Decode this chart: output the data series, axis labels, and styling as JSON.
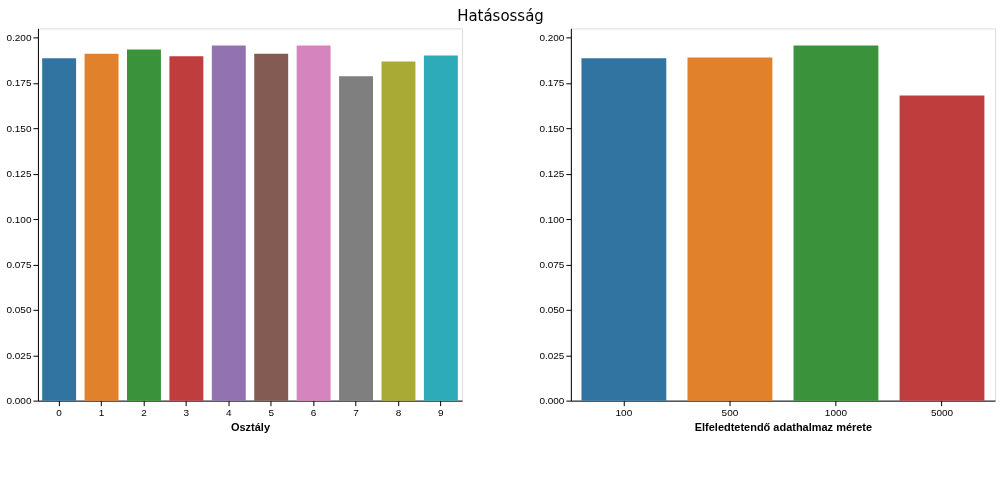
{
  "chart_data": [
    {
      "type": "bar",
      "title": "Hatásosság",
      "xlabel": "Osztály",
      "categories": [
        "0",
        "1",
        "2",
        "3",
        "4",
        "5",
        "6",
        "7",
        "8",
        "9"
      ],
      "values": [
        0.1885,
        0.191,
        0.1934,
        0.1896,
        0.1956,
        0.191,
        0.1956,
        0.1786,
        0.1868,
        0.19
      ],
      "colors": [
        "#3274a1",
        "#e1812c",
        "#3a923a",
        "#c03d3e",
        "#9372b2",
        "#845b53",
        "#d684bd",
        "#7f7f7f",
        "#a9aa35",
        "#2eabb8"
      ],
      "ylim": [
        0,
        0.205
      ],
      "yticks": [
        {
          "value": 0,
          "label": "0.000"
        },
        {
          "value": 0.025,
          "label": "0.025"
        },
        {
          "value": 0.05,
          "label": "0.050"
        },
        {
          "value": 0.075,
          "label": "0.075"
        },
        {
          "value": 0.1,
          "label": "0.100"
        },
        {
          "value": 0.125,
          "label": "0.125"
        },
        {
          "value": 0.15,
          "label": "0.150"
        },
        {
          "value": 0.175,
          "label": "0.175"
        },
        {
          "value": 0.2,
          "label": "0.200"
        }
      ],
      "grid": false,
      "legend": false
    },
    {
      "type": "bar",
      "xlabel": "Elfeledtetendő adathalmaz mérete",
      "categories": [
        "100",
        "500",
        "1000",
        "5000"
      ],
      "values": [
        0.1885,
        0.189,
        0.1956,
        0.168
      ],
      "colors": [
        "#3274a1",
        "#e1812c",
        "#3a923a",
        "#c03d3e"
      ],
      "ylim": [
        0,
        0.205
      ],
      "yticks": [
        {
          "value": 0,
          "label": "0.000"
        },
        {
          "value": 0.025,
          "label": "0.025"
        },
        {
          "value": 0.05,
          "label": "0.050"
        },
        {
          "value": 0.075,
          "label": "0.075"
        },
        {
          "value": 0.1,
          "label": "0.100"
        },
        {
          "value": 0.125,
          "label": "0.125"
        },
        {
          "value": 0.15,
          "label": "0.150"
        },
        {
          "value": 0.175,
          "label": "0.175"
        },
        {
          "value": 0.2,
          "label": "0.200"
        }
      ],
      "grid": false,
      "legend": false
    }
  ]
}
